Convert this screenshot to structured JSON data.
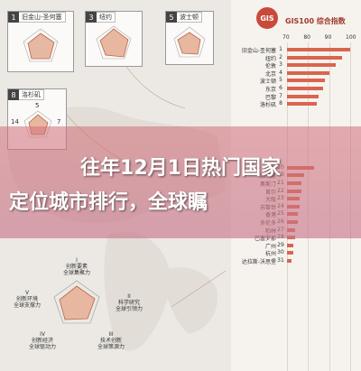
{
  "cards": [
    {
      "num": "1",
      "name": "旧金山-圣何塞"
    },
    {
      "num": "3",
      "name": "纽约"
    },
    {
      "num": "5",
      "name": "波士顿"
    },
    {
      "num": "8",
      "name": "洛杉矶"
    }
  ],
  "card_numbers": {
    "n1": "5",
    "n2": "14",
    "n3": "7",
    "n4": "5",
    "n5": "11"
  },
  "ranking": {
    "logo": "GIS",
    "title": "GIS100 综合指数",
    "ticks": [
      "70",
      "80",
      "90",
      "100"
    ],
    "rows": [
      {
        "name": "旧金山-圣何塞",
        "rank": "1",
        "value": 100
      },
      {
        "name": "纽约",
        "rank": "2",
        "value": 96
      },
      {
        "name": "伦敦",
        "rank": "3",
        "value": 93
      },
      {
        "name": "北京",
        "rank": "4",
        "value": 90
      },
      {
        "name": "波士顿",
        "rank": "5",
        "value": 88
      },
      {
        "name": "东京",
        "rank": "6",
        "value": 87
      },
      {
        "name": "巴黎",
        "rank": "7",
        "value": 85
      },
      {
        "name": "洛杉矶",
        "rank": "8",
        "value": 84
      },
      {
        "name": "上海",
        "rank": "10",
        "value": 83
      },
      {
        "name": "慕尼黑",
        "rank": "20",
        "value": 78
      },
      {
        "name": "奥斯汀",
        "rank": "21",
        "value": 77
      },
      {
        "name": "首尔",
        "rank": "22",
        "value": 77
      },
      {
        "name": "大阪",
        "rank": "23",
        "value": 76
      },
      {
        "name": "苏黎世",
        "rank": "24",
        "value": 76
      },
      {
        "name": "香港",
        "rank": "25",
        "value": 75
      },
      {
        "name": "多伦多",
        "rank": "26",
        "value": 75
      },
      {
        "name": "柏林",
        "rank": "27",
        "value": 74
      },
      {
        "name": "巴塞罗那",
        "rank": "28",
        "value": 74
      },
      {
        "name": "广州",
        "rank": "29",
        "value": 73
      },
      {
        "name": "杭州",
        "rank": "30",
        "value": 73
      },
      {
        "name": "达拉斯-沃思堡",
        "rank": "31",
        "value": 72
      }
    ]
  },
  "legend": {
    "top": "I\n创新要素\n全球集聚力",
    "right_top": "II\n科学研究\n全球引领力",
    "right_bottom": "III\n技术创新\n全球策源力",
    "left_bottom": "IV\n创新经济\n全球驱动力",
    "left_top": "V\n创新环境\n全球支撑力"
  },
  "headline": {
    "line1": "往年12月1日热门国家",
    "line2": "定位城市排行，全球瞩"
  },
  "colors": {
    "accent": "#d9654f",
    "radar_fill": "#e8b79f",
    "overlay": "#d46e7a"
  }
}
